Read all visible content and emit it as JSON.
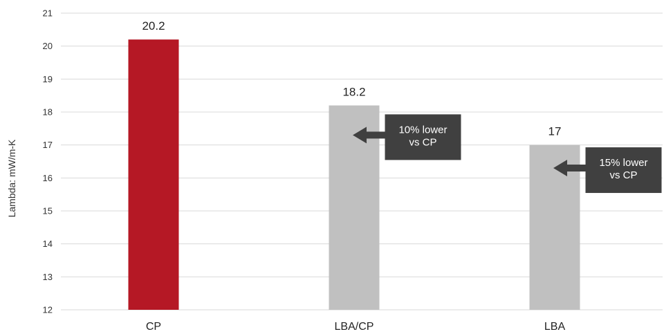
{
  "chart_data": {
    "type": "bar",
    "title": "",
    "xlabel": "",
    "ylabel": "Lambda: mW/m-K",
    "ylim": [
      12,
      21
    ],
    "yticks": [
      12,
      13,
      14,
      15,
      16,
      17,
      18,
      19,
      20,
      21
    ],
    "grid": true,
    "categories": [
      "CP",
      "LBA/CP",
      "LBA"
    ],
    "values": [
      20.2,
      18.2,
      17
    ],
    "value_labels": [
      "20.2",
      "18.2",
      "17"
    ],
    "bar_colors": [
      "#b51825",
      "#c0c0c0",
      "#c0c0c0"
    ],
    "annotations": [
      {
        "category": "LBA/CP",
        "lines": [
          "10% lower",
          "vs CP"
        ],
        "arrow_at": 17.3
      },
      {
        "category": "LBA",
        "lines": [
          "15% lower",
          "vs CP"
        ],
        "arrow_at": 16.3
      }
    ]
  },
  "colors": {
    "grid": "#d9d9d9",
    "callout": "#404040"
  }
}
